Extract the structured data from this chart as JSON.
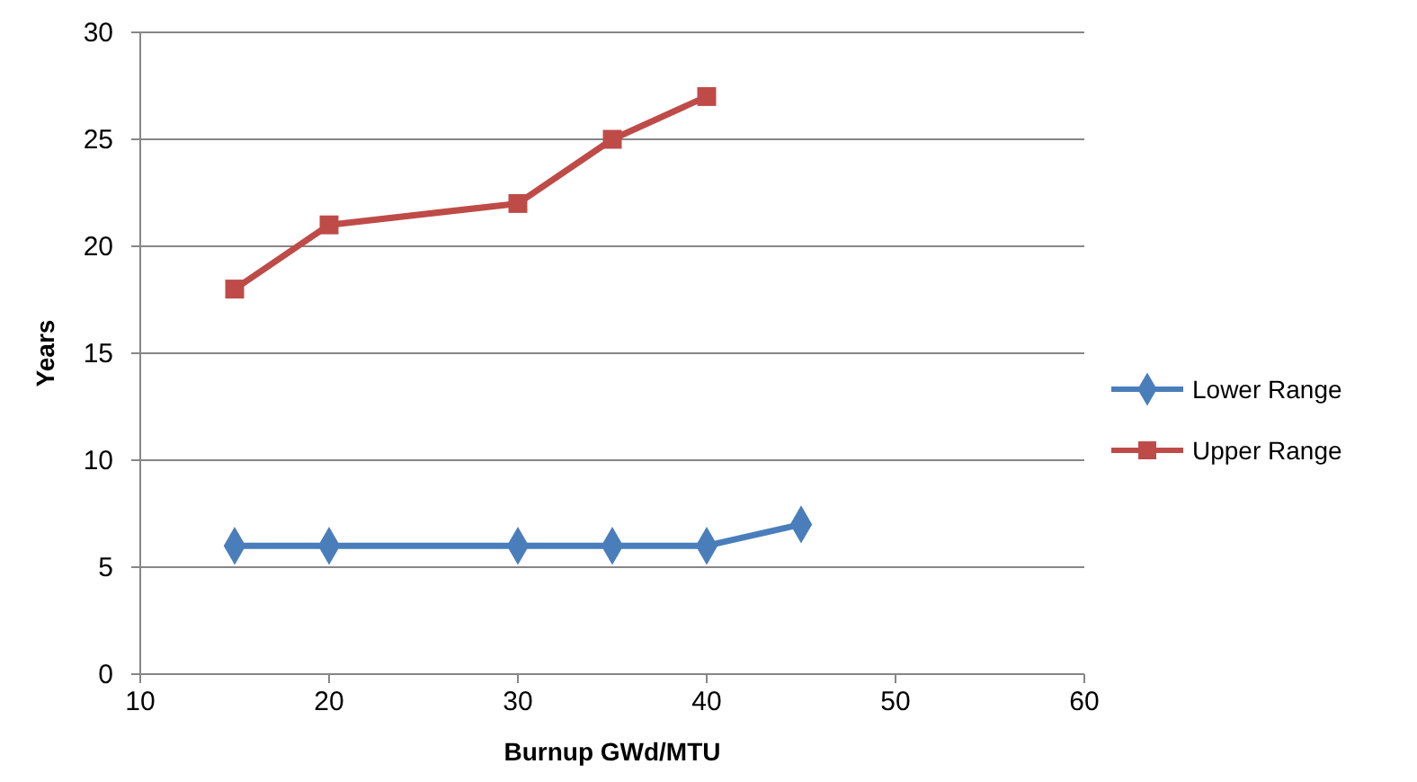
{
  "chart_data": {
    "type": "line",
    "xlabel": "Burnup GWd/MTU",
    "ylabel": "Years",
    "xlim": [
      10,
      60
    ],
    "xticks": [
      10,
      20,
      30,
      40,
      50,
      60
    ],
    "ylim": [
      0,
      30
    ],
    "yticks": [
      0,
      5,
      10,
      15,
      20,
      25,
      30
    ],
    "grid": "y",
    "legend": "right",
    "line_style": "solid",
    "series": [
      {
        "name": "Lower Range",
        "color": "#4a7ebb",
        "marker": "diamond",
        "x": [
          15,
          20,
          30,
          35,
          40,
          45
        ],
        "values": [
          6,
          6,
          6,
          6,
          6,
          7
        ]
      },
      {
        "name": "Upper Range",
        "color": "#be4b48",
        "marker": "square",
        "x": [
          15,
          20,
          30,
          35,
          40
        ],
        "values": [
          18,
          21,
          22,
          25,
          27
        ]
      }
    ]
  }
}
